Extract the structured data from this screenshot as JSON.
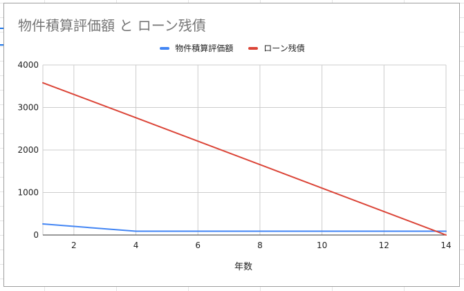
{
  "chart_data": {
    "type": "line",
    "title": "物件積算評価額 と ローン残債",
    "xlabel": "年数",
    "ylabel": "",
    "x": [
      1,
      4,
      14
    ],
    "xlim": [
      1,
      14
    ],
    "ylim": [
      0,
      4000
    ],
    "x_ticks": [
      2,
      4,
      6,
      8,
      10,
      12,
      14
    ],
    "y_ticks": [
      0,
      1000,
      2000,
      3000,
      4000
    ],
    "grid": true,
    "legend_position": "top-center",
    "series": [
      {
        "name": "物件積算評価額",
        "color": "#4285f4",
        "values": [
          260,
          90,
          90
        ]
      },
      {
        "name": "ローン残債",
        "color": "#db4437",
        "values": [
          3580,
          2760,
          0
        ]
      }
    ]
  }
}
